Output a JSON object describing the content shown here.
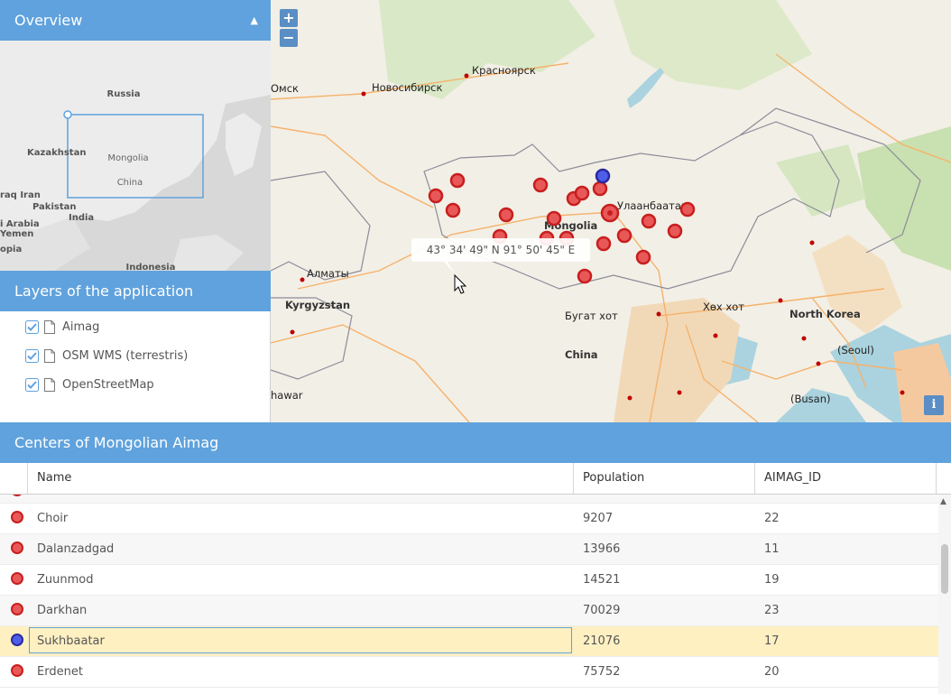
{
  "overview": {
    "title": "Overview",
    "labels": [
      "Russia",
      "Kazakhstan",
      "Mongolia",
      "China",
      "raq Iran",
      "Pakistan",
      "India",
      "i Arabia",
      "Yemen",
      "opia",
      "Indonesia"
    ]
  },
  "layers": {
    "title": "Layers of the application",
    "items": [
      {
        "label": "Aimag",
        "checked": true
      },
      {
        "label": "OSM WMS (terrestris)",
        "checked": true
      },
      {
        "label": "OpenStreetMap",
        "checked": true
      }
    ]
  },
  "map": {
    "zoom_in": "+",
    "zoom_out": "−",
    "info": "i",
    "tooltip": "43° 34' 49\" N 91° 50' 45\" E",
    "labels": {
      "krasnoyarsk": "Красноярск",
      "novosibirsk": "Новосибирск",
      "omsk": "Омск",
      "ulaanbaatar": "Улаанбаатар",
      "mongolia": "Mongolia",
      "almaty": "Алматы",
      "kyrgyzstan": "Kyrgyzstan",
      "bugat": "Бугат хот",
      "khukh": "Хөх хот",
      "china": "China",
      "north_korea": "North Korea",
      "seoul": "(Seoul)",
      "busan": "(Busan)",
      "hawar": "hawar"
    }
  },
  "grid": {
    "title": "Centers of Mongolian Aimag",
    "columns": {
      "name": "Name",
      "population": "Population",
      "aimag_id": "AIMAG_ID"
    },
    "rows": [
      {
        "name": "Choir",
        "population": "9207",
        "aimag_id": "22",
        "color": "red",
        "selected": false
      },
      {
        "name": "Dalanzadgad",
        "population": "13966",
        "aimag_id": "11",
        "color": "red",
        "selected": false
      },
      {
        "name": "Zuunmod",
        "population": "14521",
        "aimag_id": "19",
        "color": "red",
        "selected": false
      },
      {
        "name": "Darkhan",
        "population": "70029",
        "aimag_id": "23",
        "color": "red",
        "selected": false
      },
      {
        "name": "Sukhbaatar",
        "population": "21076",
        "aimag_id": "17",
        "color": "blue",
        "selected": true
      },
      {
        "name": "Erdenet",
        "population": "75752",
        "aimag_id": "20",
        "color": "red",
        "selected": false
      }
    ]
  },
  "colors": {
    "header": "#5fa2dd",
    "feature_red": "#e85858",
    "feature_blue": "#4f5ee8",
    "selected_row": "#fff0c2"
  }
}
